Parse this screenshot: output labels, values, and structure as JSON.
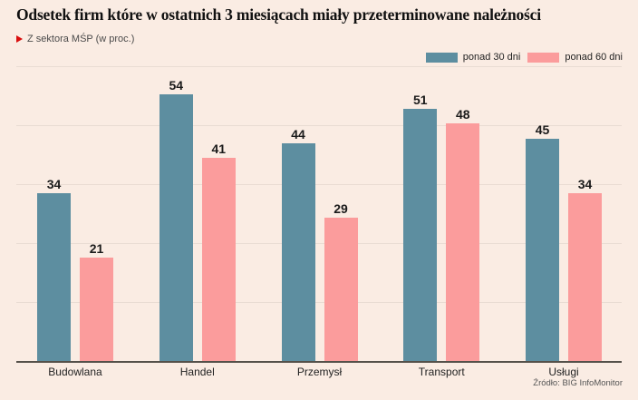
{
  "header": {
    "title": "Odsetek firm które w ostatnich 3 miesiącach miały przeterminowane należności",
    "subtitle": "Z sektora MŚP (w proc.)"
  },
  "legend": {
    "items": [
      {
        "label": "ponad 30 dni",
        "color": "#5d8ea0"
      },
      {
        "label": "ponad 60 dni",
        "color": "#fb9c9c"
      }
    ]
  },
  "chart_data": {
    "type": "bar",
    "title": "Odsetek firm które w ostatnich 3 miesiącach miały przeterminowane należności",
    "subtitle": "Z sektora MŚP (w proc.)",
    "categories": [
      "Budowlana",
      "Handel",
      "Przemysł",
      "Transport",
      "Usługi"
    ],
    "series": [
      {
        "name": "ponad 30 dni",
        "color": "#5d8ea0",
        "values": [
          34,
          54,
          44,
          51,
          45
        ]
      },
      {
        "name": "ponad 60 dni",
        "color": "#fb9c9c",
        "values": [
          21,
          41,
          29,
          48,
          34
        ]
      }
    ],
    "xlabel": "",
    "ylabel": "",
    "ylim": [
      0,
      62
    ],
    "grid": "horizontal",
    "legend_position": "top-right",
    "value_labels": true
  },
  "footer": {
    "source": "Źródło: BIG InfoMonitor"
  },
  "colors": {
    "background": "#faece3",
    "grid": "#e9dcd3",
    "axis": "#55514a",
    "marker_red": "#d90d0d"
  }
}
